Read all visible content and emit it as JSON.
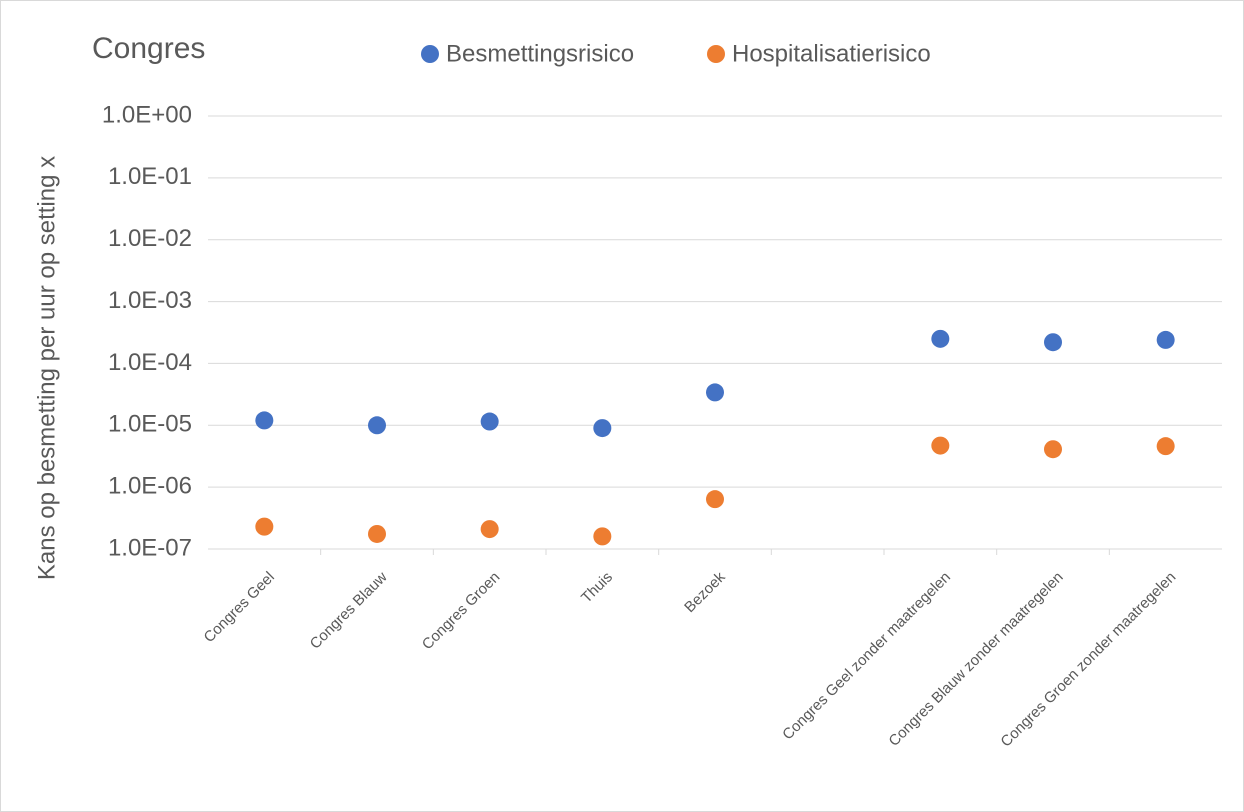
{
  "chart_data": {
    "type": "scatter",
    "title": "Congres",
    "y_label": "Kans op besmetting per uur op setting x",
    "categories": [
      "Congres Geel",
      "Congres Blauw",
      "Congres Groen",
      "Thuis",
      "Bezoek",
      null,
      "Congres Geel zonder maatregelen",
      "Congres Blauw zonder maatregelen",
      "Congres Groen zonder maatregelen"
    ],
    "series": [
      {
        "name": "Besmettingsrisico",
        "color": "#4472c4",
        "values": [
          1.2e-05,
          1e-05,
          1.15e-05,
          9e-06,
          3.4e-05,
          null,
          0.00025,
          0.00022,
          0.00024
        ]
      },
      {
        "name": "Hospitalisatierisico",
        "color": "#ed7d31",
        "values": [
          2.3e-07,
          1.75e-07,
          2.1e-07,
          1.6e-07,
          6.4e-07,
          null,
          4.7e-06,
          4.1e-06,
          4.6e-06
        ]
      }
    ],
    "log_y": true,
    "ylim": [
      1e-07,
      1
    ],
    "yticks": [
      {
        "value": 1,
        "label": "1.0E+00"
      },
      {
        "value": 0.1,
        "label": "1.0E-01"
      },
      {
        "value": 0.01,
        "label": "1.0E-02"
      },
      {
        "value": 0.001,
        "label": "1.0E-03"
      },
      {
        "value": 0.0001,
        "label": "1.0E-04"
      },
      {
        "value": 1e-05,
        "label": "1.0E-05"
      },
      {
        "value": 1e-06,
        "label": "1.0E-06"
      },
      {
        "value": 1e-07,
        "label": "1.0E-07"
      }
    ],
    "grid": true,
    "legend": "top"
  }
}
